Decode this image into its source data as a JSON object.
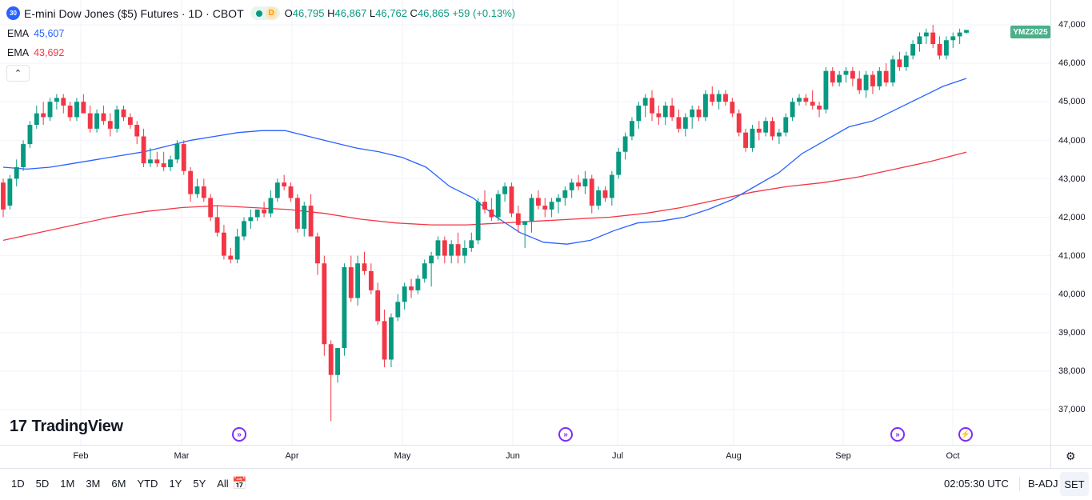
{
  "header": {
    "symbol_badge": "30",
    "title": "E-mini Dow Jones ($5) Futures · 1D · CBOT",
    "status_badge": "D",
    "ohlc": {
      "o_label": "O",
      "o_value": "46,795",
      "h_label": "H",
      "h_value": "46,867",
      "l_label": "L",
      "l_value": "46,762",
      "c_label": "C",
      "c_value": "46,865",
      "change": "+59 (+0.13%)"
    }
  },
  "indicators": [
    {
      "label": "EMA",
      "value": "45,607",
      "color": "#2962ff"
    },
    {
      "label": "EMA",
      "value": "43,692",
      "color": "#f23645"
    }
  ],
  "contract_tag": "YMZ2025",
  "logo_text": "TradingView",
  "price_axis_labels": [
    "47,000",
    "46,000",
    "45,000",
    "44,000",
    "43,000",
    "42,000",
    "41,000",
    "40,000",
    "39,000",
    "38,000",
    "37,000"
  ],
  "time_axis_labels": [
    "Feb",
    "Mar",
    "Apr",
    "May",
    "Jun",
    "Jul",
    "Aug",
    "Sep",
    "Oct"
  ],
  "bottom_bar": {
    "ranges": [
      "1D",
      "5D",
      "1M",
      "3M",
      "6M",
      "YTD",
      "1Y",
      "5Y",
      "All"
    ],
    "clock": "02:05:30 UTC",
    "adjust": "B-ADJ",
    "session": "SET"
  },
  "colors": {
    "up": "#089981",
    "down": "#f23645",
    "ema_fast": "#2962ff",
    "ema_slow": "#f23645",
    "events": "#7b2ff7"
  },
  "chart_data": {
    "type": "candlestick",
    "title": "E-mini Dow Jones ($5) Futures · 1D · CBOT",
    "xlabel": "",
    "ylabel": "",
    "ylim": [
      36500,
      47300
    ],
    "x_ticks": [
      "Feb",
      "Mar",
      "Apr",
      "May",
      "Jun",
      "Jul",
      "Aug",
      "Sep",
      "Oct"
    ],
    "y_ticks": [
      37000,
      38000,
      39000,
      40000,
      41000,
      42000,
      43000,
      44000,
      45000,
      46000,
      47000
    ],
    "ohlc": [
      [
        42900,
        43000,
        42000,
        42200
      ],
      [
        42300,
        43100,
        42200,
        43000
      ],
      [
        43000,
        43500,
        42800,
        43300
      ],
      [
        43300,
        44000,
        43200,
        43900
      ],
      [
        43900,
        44500,
        43800,
        44400
      ],
      [
        44400,
        44900,
        44300,
        44700
      ],
      [
        44700,
        45000,
        44400,
        44600
      ],
      [
        44600,
        45100,
        44500,
        45000
      ],
      [
        45000,
        45200,
        44800,
        45100
      ],
      [
        45100,
        45200,
        44700,
        44900
      ],
      [
        44900,
        45000,
        44500,
        44600
      ],
      [
        44600,
        45100,
        44500,
        45000
      ],
      [
        45000,
        45200,
        44800,
        44700
      ],
      [
        44700,
        44900,
        44200,
        44300
      ],
      [
        44300,
        44800,
        44200,
        44700
      ],
      [
        44700,
        44900,
        44400,
        44500
      ],
      [
        44500,
        44700,
        44100,
        44300
      ],
      [
        44300,
        44900,
        44200,
        44800
      ],
      [
        44800,
        44900,
        44500,
        44600
      ],
      [
        44600,
        44700,
        44300,
        44400
      ],
      [
        44400,
        44500,
        43900,
        44100
      ],
      [
        44100,
        44300,
        43300,
        43400
      ],
      [
        43400,
        43800,
        43300,
        43500
      ],
      [
        43500,
        43700,
        43300,
        43400
      ],
      [
        43400,
        43700,
        43200,
        43300
      ],
      [
        43300,
        43600,
        43200,
        43500
      ],
      [
        43500,
        44000,
        43400,
        43900
      ],
      [
        43900,
        44000,
        43100,
        43200
      ],
      [
        43200,
        43300,
        42400,
        42600
      ],
      [
        42600,
        43000,
        42500,
        42800
      ],
      [
        42800,
        43000,
        42400,
        42500
      ],
      [
        42500,
        42600,
        41900,
        42000
      ],
      [
        42000,
        42300,
        41500,
        41600
      ],
      [
        41600,
        41800,
        40900,
        41000
      ],
      [
        41000,
        41200,
        40800,
        40900
      ],
      [
        40900,
        41700,
        40800,
        41500
      ],
      [
        41500,
        42000,
        41400,
        41900
      ],
      [
        41900,
        42200,
        41700,
        42000
      ],
      [
        42000,
        42200,
        41900,
        42200
      ],
      [
        42200,
        42400,
        42000,
        42100
      ],
      [
        42100,
        42700,
        42000,
        42500
      ],
      [
        42500,
        43000,
        42400,
        42900
      ],
      [
        42900,
        43100,
        42700,
        42800
      ],
      [
        42800,
        42900,
        42400,
        42500
      ],
      [
        42500,
        42600,
        41600,
        41700
      ],
      [
        41700,
        42400,
        41500,
        42300
      ],
      [
        42300,
        42600,
        41600,
        41500
      ],
      [
        41500,
        41600,
        40500,
        40800
      ],
      [
        40800,
        41000,
        38400,
        38700
      ],
      [
        38700,
        38800,
        36700,
        37900
      ],
      [
        37900,
        38500,
        37700,
        38600
      ],
      [
        38600,
        40800,
        38400,
        40700
      ],
      [
        40700,
        41000,
        39800,
        39900
      ],
      [
        39900,
        41000,
        39700,
        40800
      ],
      [
        40800,
        41100,
        40500,
        40600
      ],
      [
        40600,
        40800,
        40000,
        40100
      ],
      [
        40100,
        40300,
        39200,
        39300
      ],
      [
        39300,
        39600,
        38100,
        38300
      ],
      [
        38300,
        39500,
        38100,
        39400
      ],
      [
        39400,
        40000,
        39300,
        39800
      ],
      [
        39800,
        40300,
        39600,
        40200
      ],
      [
        40200,
        40400,
        39900,
        40100
      ],
      [
        40100,
        40500,
        40000,
        40400
      ],
      [
        40400,
        40900,
        40300,
        40800
      ],
      [
        40800,
        41100,
        40200,
        41000
      ],
      [
        41000,
        41500,
        40900,
        41400
      ],
      [
        41400,
        41500,
        40800,
        41000
      ],
      [
        41000,
        41400,
        40800,
        41300
      ],
      [
        41300,
        41600,
        40800,
        41000
      ],
      [
        41000,
        41400,
        40800,
        41200
      ],
      [
        41200,
        41600,
        41100,
        41400
      ],
      [
        41400,
        42500,
        41300,
        42400
      ],
      [
        42400,
        42700,
        42100,
        42200
      ],
      [
        42200,
        42500,
        41900,
        42000
      ],
      [
        42000,
        42700,
        41900,
        42600
      ],
      [
        42600,
        42900,
        42400,
        42800
      ],
      [
        42800,
        42900,
        42000,
        42100
      ],
      [
        42100,
        42300,
        41600,
        41800
      ],
      [
        41800,
        41900,
        41200,
        41900
      ],
      [
        41900,
        42600,
        41600,
        42500
      ],
      [
        42500,
        42700,
        42200,
        42300
      ],
      [
        42300,
        42500,
        42000,
        42200
      ],
      [
        42200,
        42500,
        42000,
        42400
      ],
      [
        42400,
        42600,
        42100,
        42500
      ],
      [
        42500,
        42800,
        42300,
        42700
      ],
      [
        42700,
        43000,
        42500,
        42900
      ],
      [
        42900,
        43100,
        42700,
        42800
      ],
      [
        42800,
        43200,
        42600,
        43000
      ],
      [
        43000,
        43100,
        42100,
        42300
      ],
      [
        42300,
        42800,
        42200,
        42700
      ],
      [
        42700,
        42800,
        42400,
        42500
      ],
      [
        42500,
        43200,
        42300,
        43100
      ],
      [
        43100,
        43800,
        43000,
        43700
      ],
      [
        43700,
        44200,
        43500,
        44100
      ],
      [
        44100,
        44600,
        44000,
        44500
      ],
      [
        44500,
        45000,
        44300,
        44900
      ],
      [
        44900,
        45200,
        44600,
        45100
      ],
      [
        45100,
        45300,
        44500,
        44700
      ],
      [
        44700,
        44900,
        44400,
        44600
      ],
      [
        44600,
        45000,
        44400,
        44900
      ],
      [
        44900,
        45100,
        44500,
        44600
      ],
      [
        44600,
        44800,
        44200,
        44300
      ],
      [
        44300,
        44700,
        44100,
        44600
      ],
      [
        44600,
        44900,
        44300,
        44800
      ],
      [
        44800,
        44900,
        44500,
        44600
      ],
      [
        44600,
        45300,
        44500,
        45200
      ],
      [
        45200,
        45400,
        44900,
        45000
      ],
      [
        45000,
        45300,
        44800,
        45200
      ],
      [
        45200,
        45300,
        44900,
        45000
      ],
      [
        45000,
        45100,
        44600,
        44700
      ],
      [
        44700,
        44800,
        44100,
        44200
      ],
      [
        44200,
        44300,
        43700,
        43800
      ],
      [
        43800,
        44400,
        43700,
        44300
      ],
      [
        44300,
        44500,
        44000,
        44200
      ],
      [
        44200,
        44600,
        44100,
        44500
      ],
      [
        44500,
        44600,
        44000,
        44100
      ],
      [
        44100,
        44300,
        43900,
        44200
      ],
      [
        44200,
        44700,
        44100,
        44600
      ],
      [
        44600,
        45100,
        44500,
        45000
      ],
      [
        45000,
        45200,
        44900,
        45100
      ],
      [
        45100,
        45200,
        44900,
        45000
      ],
      [
        45000,
        45300,
        44800,
        44900
      ],
      [
        44900,
        45000,
        44600,
        44800
      ],
      [
        44800,
        45900,
        44700,
        45800
      ],
      [
        45800,
        45900,
        45400,
        45500
      ],
      [
        45500,
        45800,
        45400,
        45700
      ],
      [
        45700,
        45900,
        45500,
        45800
      ],
      [
        45800,
        45900,
        45400,
        45600
      ],
      [
        45600,
        45800,
        45200,
        45300
      ],
      [
        45300,
        45800,
        45100,
        45700
      ],
      [
        45700,
        45800,
        45200,
        45400
      ],
      [
        45400,
        45900,
        45300,
        45800
      ],
      [
        45800,
        46000,
        45400,
        45500
      ],
      [
        45500,
        46200,
        45400,
        46100
      ],
      [
        46100,
        46300,
        45800,
        45900
      ],
      [
        45900,
        46300,
        45800,
        46200
      ],
      [
        46200,
        46600,
        46100,
        46500
      ],
      [
        46500,
        46800,
        46300,
        46700
      ],
      [
        46700,
        46900,
        46500,
        46800
      ],
      [
        46800,
        47000,
        46400,
        46500
      ],
      [
        46500,
        46700,
        46100,
        46200
      ],
      [
        46200,
        46700,
        46100,
        46600
      ],
      [
        46600,
        46800,
        46400,
        46700
      ],
      [
        46700,
        46900,
        46500,
        46800
      ],
      [
        46795,
        46867,
        46762,
        46865
      ]
    ],
    "ema_fast": {
      "label": "EMA",
      "last": 45607,
      "values": [
        43300,
        43250,
        43300,
        43400,
        43500,
        43600,
        43700,
        43850,
        44000,
        44100,
        44200,
        44250,
        44250,
        44100,
        43950,
        43800,
        43700,
        43550,
        43300,
        42800,
        42500,
        42000,
        41600,
        41350,
        41300,
        41400,
        41650,
        41850,
        41900,
        42000,
        42200,
        42450,
        42800,
        43150,
        43650,
        44000,
        44350,
        44500,
        44800,
        45100,
        45400,
        45607
      ]
    },
    "ema_slow": {
      "label": "EMA",
      "last": 43692,
      "values": [
        41400,
        41600,
        41800,
        42000,
        42150,
        42250,
        42300,
        42250,
        42200,
        42100,
        41950,
        41850,
        41800,
        41800,
        41850,
        41900,
        41950,
        42000,
        42100,
        42250,
        42450,
        42650,
        42800,
        42900,
        43050,
        43250,
        43450,
        43692
      ]
    }
  }
}
